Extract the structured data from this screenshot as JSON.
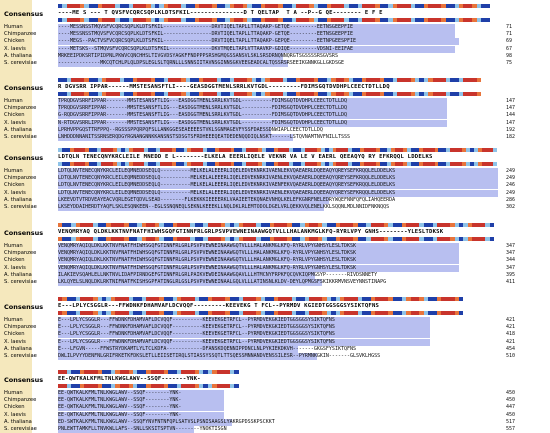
{
  "consensus_label": "Consensus",
  "species": [
    "Human",
    "Chimpanzee",
    "Chicken",
    "X. laevis",
    "A. thaliana",
    "S. cerevisiae"
  ],
  "colors": {
    "sidebar_background": "#f5e8bd",
    "identical_highlight": "#b8bff0",
    "yellow_highlight": "#f3f07a",
    "conservation_high": "#1f3fa8",
    "conservation_mid": "#8fc3e8",
    "conservation_low": "#e8743b",
    "conservation_very_low": "#c8342c"
  },
  "blocks": [
    {
      "consensus": "----ME S --- T QVSFVCQRCSQPLKLDTSFKIL---------------D T QELTAP  T A --P--G QE-------- E F E",
      "rows": [
        {
          "seq": "----MESSNSSTMQVSFVCQRCSQPLKLDTSFKIL----------------DRVTIQELTAPLLTTAQAKP-GETQE---------EETNSGEEPFIE",
          "end": "71"
        },
        {
          "seq": "----MESSNSSTMQVSFVCQRCSQPLKLDTSFKIL----------------DRVTIQELTAPLLTTAQAKP-GETQE---------EETNSGEEPFIE",
          "end": "71"
        },
        {
          "seq": "----MEGS--PACTVSFVCQRCSQPLKLDTSFKIL----------------DRVTIQELTAPLLTTAQAKP-GEPQE---------EETNPGEESPFIE",
          "end": "69"
        },
        {
          "seq": "----METSKS--STMQVSFVCQRCSQPLKLDTSFKIL--------------DKVTMQELTAPLVTTAAVKP-GDIQE---------VDSNI-EEIFAE",
          "end": "67"
        },
        {
          "seq": "MRKEEIPDKSRTIPIDPNLPKWVCQNCHHSLTIVGVDSYAGKFFNDPPPSRSHGMQGSSANSVLSKLSRSDRNQNNQRGTSGSSSSRSGVSRS",
          "end": "98"
        },
        {
          "seq": "--------------MKCQTCHLPLQLDPSLEGLSLTQRNLLLSNNSIITAVNSGINNSGKVEEGEADCALTQSSRSRSEEIKGNNKGLLGKDSGE",
          "end": "75"
        }
      ]
    },
    {
      "consensus": "R DGVSRR IPPAR------MMSTESANSFTLI----GEASDGGTMENLSRRLKVTGDL---------FDIMSGQTDVDHPLCEECTDTLLDQ",
      "rows": [
        {
          "seq": "TPRQDGVSRRFIPPAR-------MMSTESANSFTLIG---EASDGGTMENLSRRLKVTGDL----------FDIMSGQTDVDHPLCEECTDTLLDQ",
          "end": "147"
        },
        {
          "seq": "TPRQDGVSRRFIPPAR-------MMSTESANSFTLIG---EASDGGTMENLSRRLKVTGDL----------FDIMSGQTDVDHPLCEECTDTLLDQ",
          "end": "147"
        },
        {
          "seq": "G-RQDGVSRRFIPPAR-------MMSTESANSFTLIG---EASDGGTMENLSRRLKVTGDL----------FDIMSGQTDVDHPLCEECTDTLLDQ",
          "end": "144"
        },
        {
          "seq": "N-RTDGVSRRLIPPAR-------MMSTESANSFTLIG---EASDGGTMENLSRRLKVTGDL----------FDIMSGQTDVDHPLCEECTDTLLDQ",
          "end": "147"
        },
        {
          "seq": "LPRHVPPGQSTTRFPPQ--RGSSSPPQRPQFSLLANKGGESEAEEEESTVKLSGNMAGEVFYSSFDAESSDNWIAPLCEECTDTLLDQ",
          "end": "192"
        },
        {
          "seq": "LNHDDDNNANITSSRNSERQDGYRGNANGNNKKANSNSTSDSGTSFRDHEEEQEATDEDENQQDIQLNSKT------LSTQVNAMTNVFNILLTSSS",
          "end": "182"
        }
      ]
    },
    {
      "consensus": "LDTQLN TENECQNYKRCLEILE MNEDD E L--------ELKELA EEERLIQELE VEKNR VA LE V EAERL QEEAQYQ RY EFKRQQL LDDELKS",
      "rows": [
        {
          "seq": "LDTQLNVTENECQNYKRCLEILEQMNEDDSEQLQ----------MELKELALEEERLIQELEDVEKNRKIVAENLEKVQAEAERLDQEEAQYQREYSEFKRQQLELDDELKS",
          "end": "249"
        },
        {
          "seq": "LDTQLNVTENECQNYKRCLEILEQMNEDDSEQLQ----------MELKELALEEERLIQELEDVEKNRKIVAENLEKVQAEAERLDQEEAQYQREYSEFKRQQLELDDELKS",
          "end": "249"
        },
        {
          "seq": "LDTQLNVTENECQNYKRCLEILEQMNEDDSEQLQ----------MELKELALEEERLIQELEDVEKNRKIVAENFEKVQAEAERLDQEEAQYQREYSEFKRQQLELDDELKS",
          "end": "246"
        },
        {
          "seq": "LDTQLNVTENECQNYKRCLEILEQMNEDDSEQLQ----------MELKELALEEERLIQELEDVEKNRKIVAENLEKVQAEAERLDQEEAQYQREYSEFKRQQLELDDELKS",
          "end": "249"
        },
        {
          "seq": "LKEEVDTVTRDVEAYEACVQRLEGETQDVLSEAD--------FLKEKKKIEEEERKLVAAIEETEKQNAEVNHQLKELEFKGNRFNELEDRYWQEFNNFQFQLIAHQEERDA",
          "end": "286"
        },
        {
          "seq": "LKSEYDDAIHERDTYAQFLSKLESQNKEEN--EGLSSNQNEQLSEKNLKEEEKLLNQLDKLRLEMTODOLDGELVRLQEKKVQLENELKKLSQQNLMDLNNIDFNKNQQS",
          "end": "302"
        }
      ]
    },
    {
      "consensus": "VENQMRYAQ QLDKLKKTNVFNATFHIWHSGQFGTINNFRLGRLPSVPVEWNEINAAWGQTVLLLHALANKMGLKFQ-RYRLVPY GNHS--------YLESLTDKSK",
      "rows": [
        {
          "seq": "VENQMRYAQIQLDKLKKTNVFNATFHIWHSGQFGTINNFRLGRLPSVPVEWNEINAAWGQTVLLLHALANKMGLKFQ-RYRLVPYGNHSYLESLTDKSK",
          "end": "347"
        },
        {
          "seq": "VENQMRYAQIQLDKLKKTNVFNATFHIWHSGQFGTINNFRLGRLPSVPVEWNEINAAWGQTVLLLHALANKMGLKFQ-RYRLVPYGNHSYLESLTDKSK",
          "end": "347"
        },
        {
          "seq": "VENQMRYAQIQLDKLKKTNVFNATFHIWHSGQFGTINNFRLGRLPSVPVEWNEINAAWGQTVLLLHALANKMGLKFQ-RYRLVPYGNHSYLESLTDKSK",
          "end": "344"
        },
        {
          "seq": "VENQMRYAQIQLDKLKKTNVFNATFHIWHSGQFGTINNFRLGRLPSVPVEWNEINAAWGQTVLLLHALANKMGLKFQ-RYRLVPYGNHSYLESLTDKSK",
          "end": "347"
        },
        {
          "seq": "ILAKIEVSQAHLELLNKTNVLIDAFPIRNDGEFGTINNFRLGRLPAIKVEWDEINAAWGQAVLLLHTMCNYFRPKFQCQVKIQPMGSYP-------RIVDSNNETY",
          "end": "395"
        },
        {
          "seq": "LKLQYELSLNQLDKLRKTNIFNATFKISHSGPFATINGLRLGSLPSVPVEWNEINAALGQLVLLLATINSNLKLDV-DEYLQPMGSFSKIKKRMVNSVEYNNSTINAPG",
          "end": "411"
        }
      ]
    },
    {
      "consensus": "E---LPLYCSGGLR---FFWDNKFDHAMVAFLDCVQQF---------KEEVEKG T FCL--PYRMDV KGIEDTGGSGGSYSIKTQFNS",
      "rows": [
        {
          "seq": "E---LPLYCSGGLR---FFWDNKFDHAMVAFLDCVQQF----------KEEVEKGETRFCL--PYRMDVEKGKIEDTGGSGGSYSIKTQFNS",
          "end": "421"
        },
        {
          "seq": "E---LPLYCSGGLR---FFWDNKFDHAMVAFLDCVQQF----------KEEVEKGETRFCL--PYRMDVEKGKIEDTGGSGGSYSIKTQFNS",
          "end": "421"
        },
        {
          "seq": "E---LPLYCSGGLR---FFWDNKFDHAMVAFLDCVQQF----------KEEVEKGETRFCL--PYRMDVEKGKIEDTGGSGGSYSIKTQFNS",
          "end": "418"
        },
        {
          "seq": "E---LPLYCSGGLR---FFWDNKFDHAMVAFLDCVQQF----------KEEVEKGETRFCL--PYRMDVEKGKIEDTGGSGGSYSIKTQFNS",
          "end": "421"
        },
        {
          "seq": "E---LFGVN-----FFWSTRYDKAMTLYLTCLKDFA------------DFANSKDQENNIPPDNCLNLPYKIEKDKVH-------GKGSFYSIKTQFNS",
          "end": "454"
        },
        {
          "seq": "DWLILPVYYDENFNLGRIFRKETKFDKSLETLLEIISETIRQLSTIASSYSSQTLTTSQESSMNNANDVENSSILESR--PYRMNKGKIN-------GLSVKLHGSS",
          "end": "510"
        }
      ]
    },
    {
      "consensus": "EE-QWTKALKFMLTNLKWGLAWV--SSQF-------YNK-",
      "rows": [
        {
          "seq": "EE-QWTKALKFMLTNLKWGLAWV--SSQF--------YNK-",
          "end": "450"
        },
        {
          "seq": "EE-QWTKALKFMLTNLKWGLAWV--SSQF--------YNK-",
          "end": "450"
        },
        {
          "seq": "EE-QWTKALKFMLTNLKWGLAWV--SSQF--------YNK-",
          "end": "447"
        },
        {
          "seq": "EE-QWTKALKFMLTNLKWGLAWV--SSQF--------YNK-",
          "end": "450"
        },
        {
          "seq": "ED-SWTKALKFMLTNLKWGLAWV--SSQFYNVFNTNFQPLSATVSLPSNISAAGSLYAKRGPDSSKPSCKKT",
          "end": "517"
        },
        {
          "seq": "PNLEWTTAMKFLLTNVKWLLAFS--SNLLSKSITSPTVN--------YNOKTISGN",
          "end": "557"
        }
      ]
    }
  ]
}
